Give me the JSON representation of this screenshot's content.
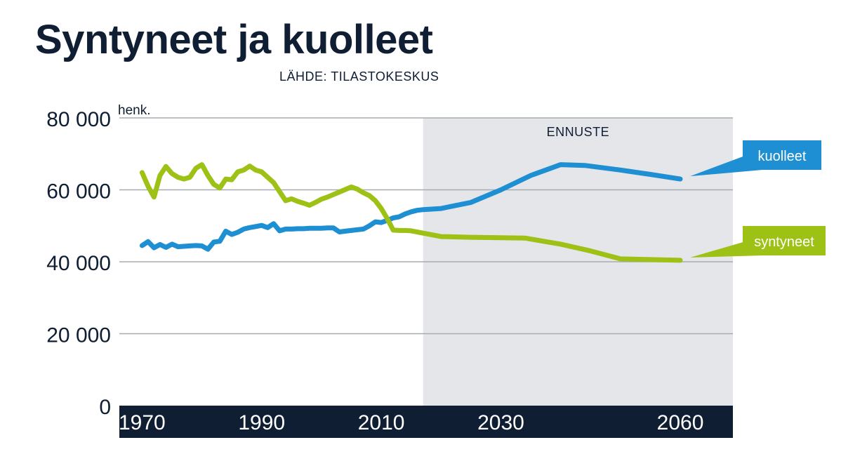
{
  "title": "Syntyneet ja kuolleet",
  "source": "LÄHDE: TILASTOKESKUS",
  "chart_data": {
    "type": "line",
    "ylim": [
      0,
      80000
    ],
    "yunit": "henk.",
    "yticks": [
      {
        "value": 0,
        "label": "0"
      },
      {
        "value": 20000,
        "label": "20 000"
      },
      {
        "value": 40000,
        "label": "40 000"
      },
      {
        "value": 60000,
        "label": "60 000"
      },
      {
        "value": 80000,
        "label": "80 000"
      }
    ],
    "xticks": [
      {
        "value": 1970,
        "label": "1970"
      },
      {
        "value": 1990,
        "label": "1990"
      },
      {
        "value": 2010,
        "label": "2010"
      },
      {
        "value": 2030,
        "label": "2030"
      },
      {
        "value": 2060,
        "label": "2060"
      }
    ],
    "forecast": {
      "label": "ENNUSTE",
      "start": 2017
    },
    "grid": true,
    "colors": {
      "kuolleet": "#1d8fd2",
      "syntyneet": "#9dc114",
      "forecast_bg": "#e4e6ea",
      "axis_bar": "#0f1e33"
    },
    "series": [
      {
        "name": "kuolleet",
        "color": "#1d8fd2",
        "points": [
          [
            1970,
            44500
          ],
          [
            1971,
            45600
          ],
          [
            1972,
            43900
          ],
          [
            1973,
            44800
          ],
          [
            1974,
            44000
          ],
          [
            1975,
            44900
          ],
          [
            1976,
            44200
          ],
          [
            1977,
            44300
          ],
          [
            1978,
            44400
          ],
          [
            1979,
            44500
          ],
          [
            1980,
            44400
          ],
          [
            1981,
            43500
          ],
          [
            1982,
            45500
          ],
          [
            1983,
            45700
          ],
          [
            1984,
            48500
          ],
          [
            1985,
            47600
          ],
          [
            1986,
            48200
          ],
          [
            1987,
            49100
          ],
          [
            1988,
            49500
          ],
          [
            1989,
            49800
          ],
          [
            1990,
            50100
          ],
          [
            1991,
            49500
          ],
          [
            1992,
            50600
          ],
          [
            1993,
            48600
          ],
          [
            1994,
            49100
          ],
          [
            1995,
            49100
          ],
          [
            1996,
            49200
          ],
          [
            1997,
            49200
          ],
          [
            1998,
            49300
          ],
          [
            1999,
            49300
          ],
          [
            2000,
            49300
          ],
          [
            2001,
            49400
          ],
          [
            2002,
            49400
          ],
          [
            2003,
            48300
          ],
          [
            2004,
            48500
          ],
          [
            2005,
            48700
          ],
          [
            2006,
            48900
          ],
          [
            2007,
            49100
          ],
          [
            2008,
            50000
          ],
          [
            2009,
            51100
          ],
          [
            2010,
            50900
          ],
          [
            2011,
            51500
          ],
          [
            2012,
            52200
          ],
          [
            2013,
            52500
          ],
          [
            2014,
            53300
          ],
          [
            2015,
            53900
          ],
          [
            2016,
            54300
          ],
          [
            2017,
            54500
          ],
          [
            2020,
            54800
          ],
          [
            2025,
            56500
          ],
          [
            2030,
            60000
          ],
          [
            2035,
            64000
          ],
          [
            2040,
            67000
          ],
          [
            2044,
            66800
          ],
          [
            2050,
            65500
          ],
          [
            2055,
            64300
          ],
          [
            2060,
            63000
          ]
        ]
      },
      {
        "name": "syntyneet",
        "color": "#9dc114",
        "points": [
          [
            1970,
            64800
          ],
          [
            1971,
            61000
          ],
          [
            1972,
            58000
          ],
          [
            1973,
            64000
          ],
          [
            1974,
            66500
          ],
          [
            1975,
            64500
          ],
          [
            1976,
            63500
          ],
          [
            1977,
            63000
          ],
          [
            1978,
            63500
          ],
          [
            1979,
            66000
          ],
          [
            1980,
            67000
          ],
          [
            1981,
            64000
          ],
          [
            1982,
            61500
          ],
          [
            1983,
            60500
          ],
          [
            1984,
            63000
          ],
          [
            1985,
            62800
          ],
          [
            1986,
            65000
          ],
          [
            1987,
            65500
          ],
          [
            1988,
            66600
          ],
          [
            1989,
            65500
          ],
          [
            1990,
            65000
          ],
          [
            1991,
            63500
          ],
          [
            1992,
            62000
          ],
          [
            1993,
            59500
          ],
          [
            1994,
            57000
          ],
          [
            1995,
            57500
          ],
          [
            1996,
            56800
          ],
          [
            1997,
            56300
          ],
          [
            1998,
            55700
          ],
          [
            1999,
            56500
          ],
          [
            2000,
            57400
          ],
          [
            2001,
            58000
          ],
          [
            2002,
            58700
          ],
          [
            2003,
            59400
          ],
          [
            2004,
            60100
          ],
          [
            2005,
            60800
          ],
          [
            2006,
            60200
          ],
          [
            2007,
            59200
          ],
          [
            2008,
            58400
          ],
          [
            2009,
            57000
          ],
          [
            2010,
            54800
          ],
          [
            2011,
            52000
          ],
          [
            2012,
            48800
          ],
          [
            2013,
            48700
          ],
          [
            2014,
            48700
          ],
          [
            2015,
            48600
          ],
          [
            2020,
            47000
          ],
          [
            2025,
            46800
          ],
          [
            2030,
            46700
          ],
          [
            2034,
            46600
          ],
          [
            2040,
            44900
          ],
          [
            2045,
            43000
          ],
          [
            2050,
            40800
          ],
          [
            2060,
            40400
          ]
        ]
      }
    ]
  }
}
